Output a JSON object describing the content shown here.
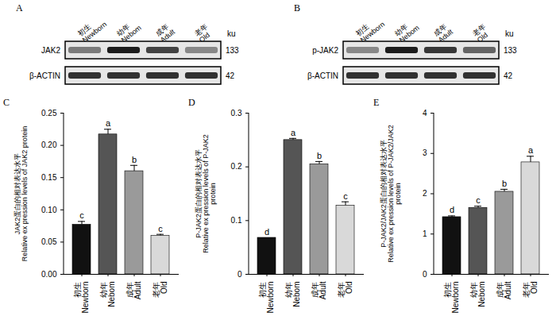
{
  "blots": [
    {
      "panel": "A",
      "unit": "ku",
      "lanes": [
        "初生 Newborn",
        "幼年 Nebom",
        "成年 Adult",
        "老年 Old"
      ],
      "rows": [
        {
          "label": "JAK2",
          "ku": 133
        },
        {
          "label": "β-ACTIN",
          "ku": 42
        }
      ]
    },
    {
      "panel": "B",
      "unit": "ku",
      "lanes": [
        "初生 Newborn",
        "幼年 Nebom",
        "成年 Adult",
        "老年 Old"
      ],
      "rows": [
        {
          "label": "p-JAK2",
          "ku": 133
        },
        {
          "label": "β-ACTIN",
          "ku": 42
        }
      ]
    }
  ],
  "chart_data": [
    {
      "panel": "C",
      "type": "bar",
      "y_label": "JAK2蛋白的相对表达水平\nRelative ex pression levels of JAK2 protein",
      "categories": [
        "初生 Newborn",
        "幼年 Nebom",
        "成年 Adult",
        "老年 Old"
      ],
      "values": [
        0.077,
        0.217,
        0.16,
        0.06
      ],
      "errors": [
        0.005,
        0.008,
        0.009,
        0.002
      ],
      "letters": [
        "c",
        "a",
        "b",
        "c"
      ],
      "colors": [
        "#111111",
        "#555555",
        "#9a9a9a",
        "#d9d9d9"
      ],
      "ylim": [
        0,
        0.25
      ],
      "yticks": [
        {
          "value": 0,
          "label": "0.00"
        },
        {
          "value": 0.05,
          "label": "0.05"
        },
        {
          "value": 0.1,
          "label": "0.10"
        },
        {
          "value": 0.15,
          "label": "0.15"
        },
        {
          "value": 0.2,
          "label": "0.20"
        },
        {
          "value": 0.25,
          "label": "0.25"
        }
      ]
    },
    {
      "panel": "D",
      "type": "bar",
      "y_label": "P-JAK2蛋白的相对表达水平\nRelative ex pression levels of P-JAK2 protein",
      "categories": [
        "初生 Newborn",
        "幼年 Nebom",
        "成年 Adult",
        "老年 Old"
      ],
      "values": [
        0.068,
        0.25,
        0.205,
        0.128
      ],
      "errors": [
        0,
        0.003,
        0.005,
        0.007
      ],
      "letters": [
        "d",
        "a",
        "b",
        "c"
      ],
      "colors": [
        "#111111",
        "#555555",
        "#9a9a9a",
        "#d9d9d9"
      ],
      "ylim": [
        0,
        0.3
      ],
      "yticks": [
        0,
        0.1,
        0.2,
        0.3
      ]
    },
    {
      "panel": "E",
      "type": "bar",
      "y_label": "P-JAK2/JAK2蛋白的相对表达水平\nRelative ex pression levels of P-JAK2/JAK2 protein",
      "categories": [
        "初生 Newborn",
        "幼年 Nebom",
        "成年 Adult",
        "老年 Old"
      ],
      "values": [
        1.42,
        1.65,
        2.05,
        2.78
      ],
      "errors": [
        0.03,
        0.04,
        0.06,
        0.15
      ],
      "letters": [
        "d",
        "c",
        "b",
        "a"
      ],
      "colors": [
        "#111111",
        "#555555",
        "#9a9a9a",
        "#d9d9d9"
      ],
      "ylim": [
        0,
        4
      ],
      "yticks": [
        0,
        1,
        2,
        3,
        4
      ]
    }
  ]
}
